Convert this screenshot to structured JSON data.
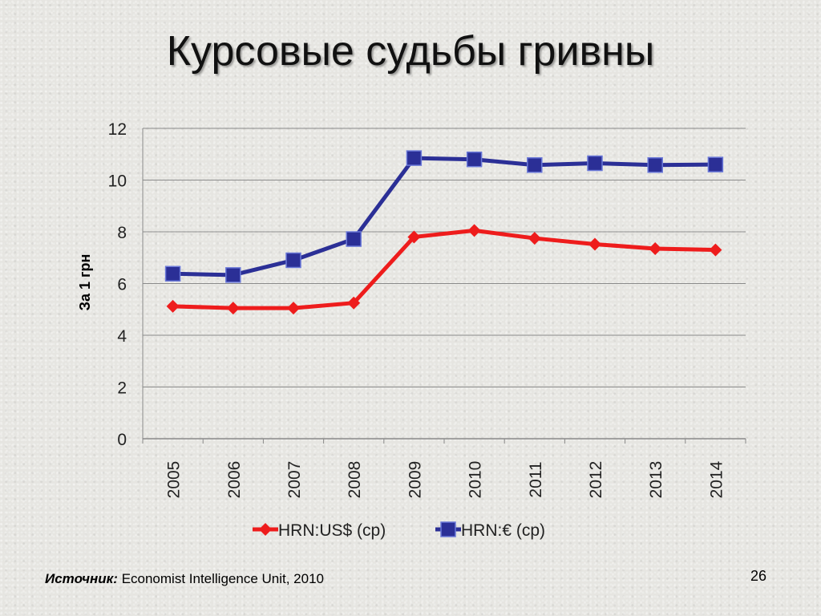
{
  "slide": {
    "title": "Курсовые судьбы гривны",
    "source_label": "Источник:",
    "source_text": "Economist Intelligence Unit, 2010",
    "page_number": "26"
  },
  "chart_data": {
    "type": "line",
    "title": "",
    "xlabel": "",
    "ylabel": "За 1 грн",
    "ylim": [
      0,
      12
    ],
    "yticks": [
      0,
      2,
      4,
      6,
      8,
      10,
      12
    ],
    "grid": true,
    "legend_position": "bottom",
    "categories": [
      "2005",
      "2006",
      "2007",
      "2008",
      "2009",
      "2010",
      "2011",
      "2012",
      "2013",
      "2014"
    ],
    "series": [
      {
        "name": "HRN:US$ (ср)",
        "color": "#ee1c1c",
        "marker": "diamond",
        "values": [
          5.12,
          5.05,
          5.05,
          5.25,
          7.8,
          8.05,
          7.75,
          7.52,
          7.35,
          7.3
        ]
      },
      {
        "name": "HRN:€ (ср)",
        "color": "#2b2f96",
        "marker": "square",
        "values": [
          6.38,
          6.33,
          6.9,
          7.72,
          10.85,
          10.8,
          10.58,
          10.65,
          10.58,
          10.6
        ]
      }
    ]
  }
}
